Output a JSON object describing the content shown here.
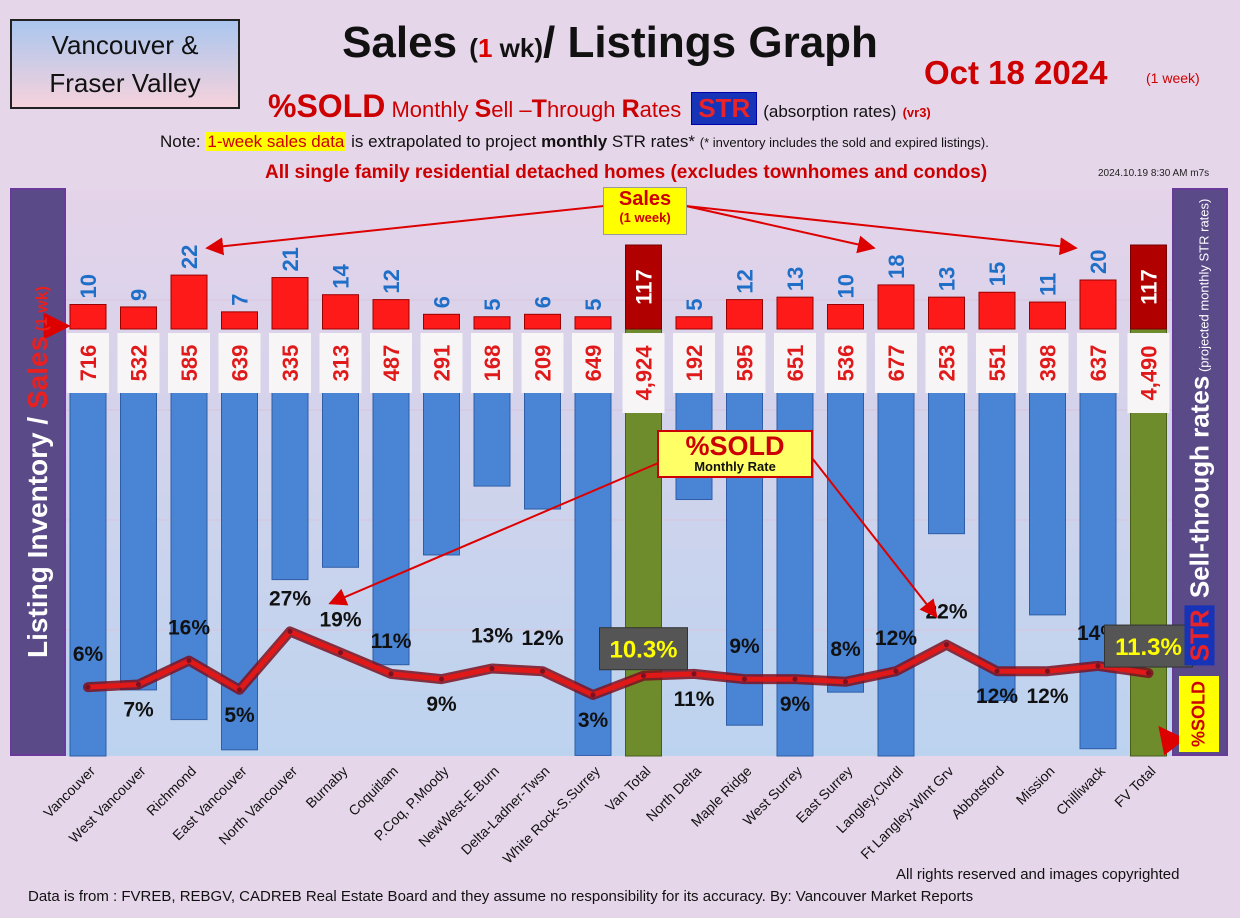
{
  "header": {
    "region_line1": "Vancouver &",
    "region_line2": "Fraser Valley",
    "title_a": "Sales ",
    "title_b": "(",
    "title_c": "1",
    "title_d": " wk)",
    "title_e": "/ Listings Graph",
    "date": "Oct 18  2024",
    "date_sub": "(1 week)",
    "subtitle_pct": "%SOLD",
    "subtitle_m": " Monthly ",
    "subtitle_s": "S",
    "subtitle_ell": "ell –",
    "subtitle_t": "T",
    "subtitle_hrough": "hrough ",
    "subtitle_r": "R",
    "subtitle_ates": "ates",
    "str_badge": "STR",
    "absorption": "(absorption rates)",
    "version": "(vr3)",
    "note_prefix": "Note: ",
    "note_highlight": "1-week sales data",
    "note_mid": " is extrapolated to project ",
    "note_bold": "monthly",
    "note_rest": " STR rates* ",
    "note_small": "(* inventory includes the sold and expired listings).",
    "homes_note": "All single family residential detached homes (excludes townhomes and condos)",
    "timestamp": "2024.10.19 8:30 AM m7s"
  },
  "axes": {
    "left_a": "Listing Inventory ",
    "left_b": "/",
    "left_c": " Sales",
    "left_d": " (1 wk)",
    "right_str": "STR",
    "right_a": " Sell-through rates",
    "right_b": " (projected monthly STR rates)",
    "pct_sold_badge": "%SOLD"
  },
  "callouts": {
    "sales_l1": "Sales",
    "sales_l2": "(1 week)",
    "sold_l1": "%SOLD",
    "sold_l2": "Monthly Rate"
  },
  "footer": {
    "copyright": "All rights reserved and  images copyrighted",
    "source": "Data is from : FVREB, REBGV, CADREB Real Estate Board and they assume no responsibility for its accuracy. By: Vancouver Market Reports"
  },
  "colors": {
    "sales_bar": "#ff1a1a",
    "total_sales_bar": "#b00000",
    "inventory_bar": "#4a84d4",
    "total_inventory_bar": "#6f8c2c",
    "str_line": "#e01818",
    "label_blue": "#1f6fc8"
  },
  "chart_data": {
    "type": "bar",
    "categories": [
      "Vancouver",
      "West Vancouver",
      "Richmond",
      "East Vancouver",
      "North Vancouver",
      "Burnaby",
      "Coquitlam",
      "P.Coq, P.Moody",
      "NewWest-E.Burn",
      "Delta-Ladner-Twsn",
      "White Rock-S.Surrey",
      "Van Total",
      "North Delta",
      "Maple Ridge",
      "West Surrey",
      "East Surrey",
      "Langley,Clvrdl",
      "Ft Langley-Wlnt Grv",
      "Abbotsford",
      "Mission",
      "Chilliwack",
      "FV Total"
    ],
    "series": [
      {
        "name": "Sales",
        "values": [
          10,
          9,
          22,
          7,
          21,
          14,
          12,
          6,
          5,
          6,
          5,
          117,
          5,
          12,
          13,
          10,
          18,
          13,
          15,
          11,
          20,
          117
        ]
      },
      {
        "name": "Listing Inventory",
        "values": [
          716,
          532,
          585,
          639,
          335,
          313,
          487,
          291,
          168,
          209,
          649,
          4924,
          192,
          595,
          651,
          536,
          677,
          253,
          551,
          398,
          637,
          4490
        ]
      },
      {
        "name": "%SOLD",
        "values": [
          6,
          7,
          16,
          5,
          27,
          19,
          11,
          9,
          13,
          12,
          3,
          10.3,
          11,
          9,
          9,
          8,
          12,
          22,
          12,
          12,
          14,
          11.3
        ]
      }
    ],
    "inventory_labels": [
      "716",
      "532",
      "585",
      "639",
      "335",
      "313",
      "487",
      "291",
      "168",
      "209",
      "649",
      "4,924",
      "192",
      "595",
      "651",
      "536",
      "677",
      "253",
      "551",
      "398",
      "637",
      "4,490"
    ],
    "str_labels": [
      "6%",
      "7%",
      "16%",
      "5%",
      "27%",
      "19%",
      "11%",
      "9%",
      "13%",
      "12%",
      "3%",
      "10.3%",
      "11%",
      "9%",
      "9%",
      "8%",
      "12%",
      "22%",
      "12%",
      "12%",
      "14%",
      "11.3%"
    ],
    "total_indices": [
      11,
      21
    ],
    "str_label_position": [
      "above",
      "below",
      "above",
      "below",
      "above",
      "above",
      "above",
      "below",
      "above",
      "above",
      "below",
      "box",
      "below",
      "above",
      "below",
      "above",
      "above",
      "above",
      "below",
      "below",
      "above",
      "box"
    ],
    "sold_arrow_targets": [
      4,
      17
    ],
    "sales_arrow_targets": [
      2,
      16,
      20
    ],
    "title": "Sales (1 wk)/ Listings Graph",
    "ylabel": "Listing Inventory / Sales (1 wk)",
    "y2label": "STR Sell-through rates (projected monthly STR rates)",
    "grid": true
  }
}
